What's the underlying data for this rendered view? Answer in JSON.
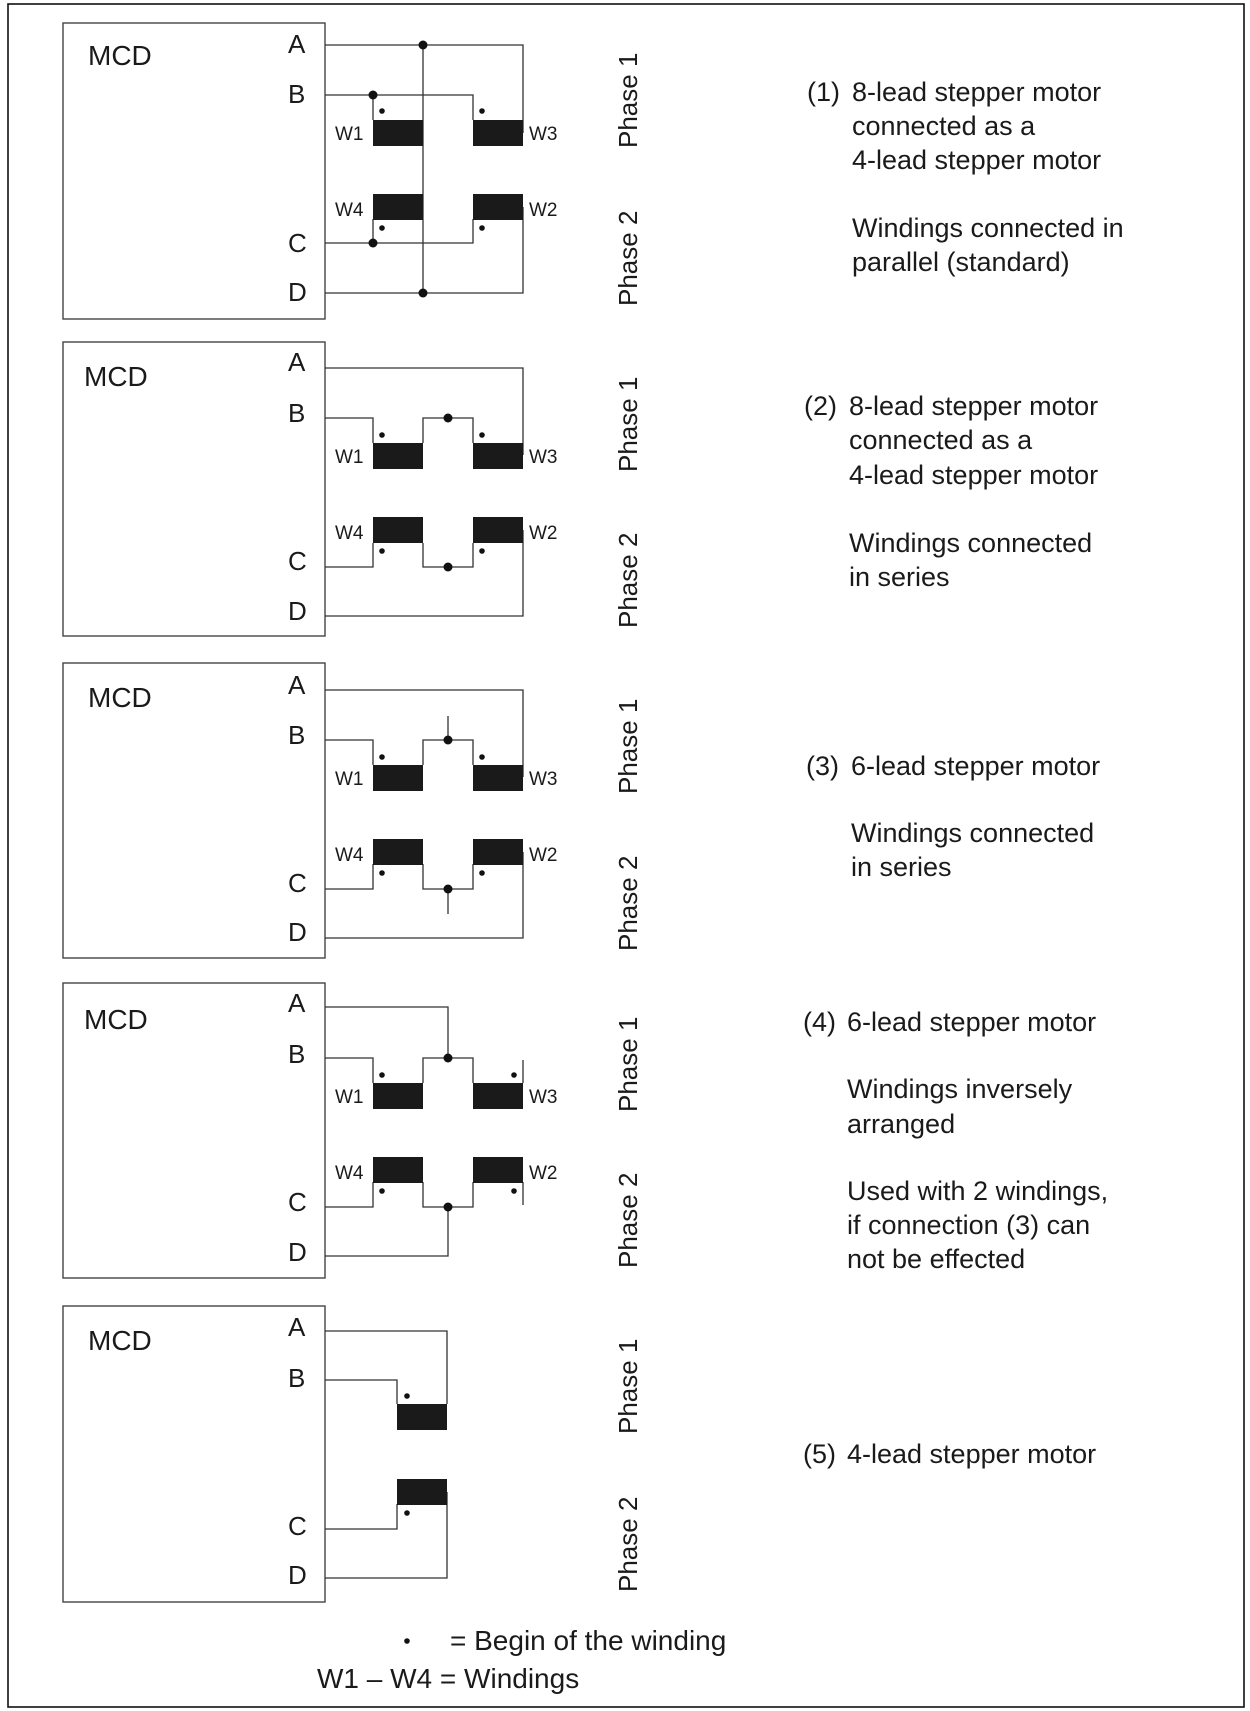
{
  "device_label": "MCD",
  "terminals": [
    "A",
    "B",
    "C",
    "D"
  ],
  "phase_labels": [
    "Phase 1",
    "Phase 2"
  ],
  "windings": [
    "W1",
    "W2",
    "W3",
    "W4"
  ],
  "configurations": [
    {
      "number": "(1)",
      "lines": [
        "8-lead stepper motor",
        "connected as a",
        "4-lead stepper motor",
        "",
        "Windings connected in",
        "parallel (standard)"
      ]
    },
    {
      "number": "(2)",
      "lines": [
        "8-lead stepper motor",
        "connected as a",
        "4-lead stepper motor",
        "",
        "Windings connected",
        "in series"
      ]
    },
    {
      "number": "(3)",
      "lines": [
        "6-lead stepper motor",
        "",
        "Windings connected",
        "in series"
      ]
    },
    {
      "number": "(4)",
      "lines": [
        "6-lead stepper motor",
        "",
        "Windings inversely",
        "arranged",
        "",
        "Used with 2 windings,",
        "if connection (3) can",
        "not be effected"
      ]
    },
    {
      "number": "(5)",
      "lines": [
        "4-lead stepper motor"
      ]
    }
  ],
  "legend": {
    "dot_symbol": "•",
    "dot_text": "= Begin of the winding",
    "windings_text": "W1 – W4 = Windings"
  }
}
